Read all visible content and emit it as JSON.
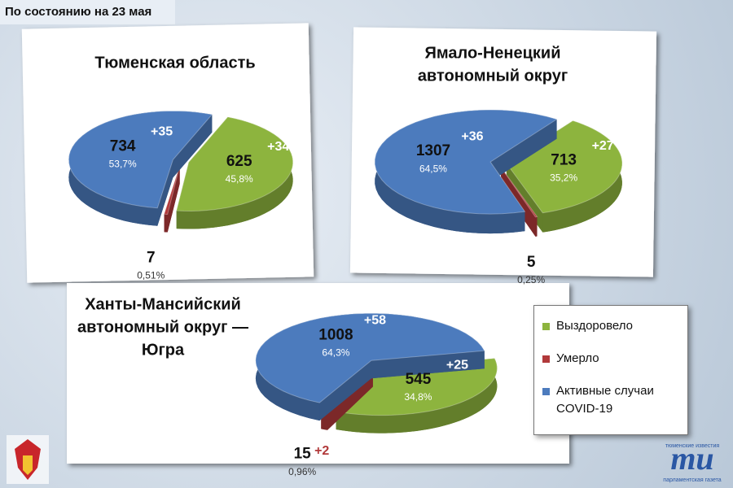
{
  "header": "По состоянию на 23 мая",
  "legend": {
    "categories": [
      "Выздоровело",
      "Умерло",
      "Активные случаи COVID-19"
    ],
    "colors": [
      "#8db43e",
      "#b1393a",
      "#4c7bbd"
    ]
  },
  "logo": {
    "mark": "ти",
    "brand": "тюменские известия",
    "sub": "парламентская газета"
  },
  "chart_data": [
    {
      "type": "pie",
      "title": [
        "Тюменская область"
      ],
      "values": [
        625,
        7,
        734
      ],
      "percent_labels": [
        "45,8%",
        "0,51%",
        "53,7%"
      ],
      "increment_labels": [
        "+34",
        null,
        "+35"
      ]
    },
    {
      "type": "pie",
      "title": [
        "Ямало-Ненецкий",
        "автономный округ"
      ],
      "values": [
        713,
        5,
        1307
      ],
      "percent_labels": [
        "35,2%",
        "0,25%",
        "64,5%"
      ],
      "increment_labels": [
        "+27",
        null,
        "+36"
      ]
    },
    {
      "type": "pie",
      "title": [
        "Ханты-Мансийский",
        "автономный округ —",
        "Югра"
      ],
      "values": [
        545,
        15,
        1008
      ],
      "percent_labels": [
        "34,8%",
        "0,96%",
        "64,3%"
      ],
      "increment_labels": [
        "+25",
        "+2",
        "+58"
      ]
    }
  ]
}
